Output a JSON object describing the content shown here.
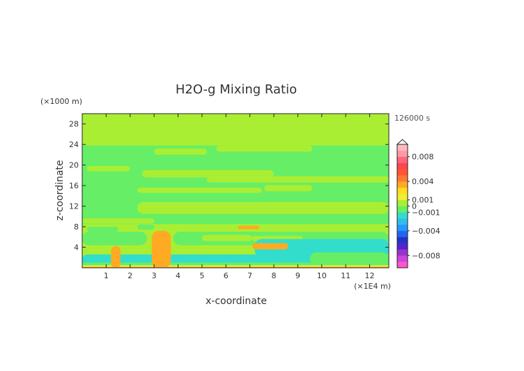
{
  "chart_data": {
    "type": "heatmap",
    "title": "H2O-g Mixing Ratio",
    "xlabel": "x-coordinate",
    "ylabel": "z-coordinate",
    "x_unit": "(×1E4 m)",
    "y_unit": "(×1000 m)",
    "time_label": "126000 s",
    "xlim": [
      0,
      12.8
    ],
    "ylim": [
      0,
      30
    ],
    "x_ticks": [
      1,
      2,
      3,
      4,
      5,
      6,
      7,
      8,
      9,
      10,
      11,
      12
    ],
    "y_ticks": [
      4,
      8,
      12,
      16,
      20,
      24,
      28
    ],
    "colorbar": {
      "range": [
        -0.01,
        0.01
      ],
      "tick_values": [
        0.008,
        0.004,
        0.001,
        0,
        -0.001,
        -0.004,
        -0.008
      ],
      "tick_labels": [
        "0.008",
        "0.004",
        "0.001",
        "0",
        "−0.001",
        "−0.004",
        "−0.008"
      ],
      "colors": [
        "#ff55cc",
        "#cc44dd",
        "#9933cc",
        "#5522cc",
        "#2233cc",
        "#2266ee",
        "#2299ff",
        "#33bbee",
        "#33ddcc",
        "#66ee66",
        "#aaee33",
        "#eeee33",
        "#ffdd22",
        "#ffaa22",
        "#ff7733",
        "#ff5533",
        "#ff4455",
        "#ff6677",
        "#ff99aa",
        "#ffbbbb"
      ]
    },
    "regions": [
      {
        "value": 0.0004,
        "band": [
          0,
          30
        ],
        "note": "background"
      },
      {
        "value": -0.0004,
        "band": [
          8.5,
          23.8
        ],
        "note": "mid-level layer"
      },
      {
        "value": 0.0004,
        "band": [
          22,
          23.2
        ],
        "x": [
          3,
          5.2
        ]
      },
      {
        "value": 0.0004,
        "band": [
          22.6,
          23.8
        ],
        "x": [
          5.6,
          9.6
        ]
      },
      {
        "value": 0.0004,
        "band": [
          18.8,
          19.8
        ],
        "x": [
          0.2,
          2
        ]
      },
      {
        "value": 0.0004,
        "band": [
          17.6,
          19
        ],
        "x": [
          2.5,
          8
        ]
      },
      {
        "value": 0.0004,
        "band": [
          16.6,
          17.8
        ],
        "x": [
          5.2,
          12.8
        ]
      },
      {
        "value": 0.0004,
        "band": [
          14.6,
          15.6
        ],
        "x": [
          2.3,
          7.5
        ]
      },
      {
        "value": 0.0004,
        "band": [
          14.9,
          16.1
        ],
        "x": [
          7.6,
          9.6
        ]
      },
      {
        "value": 0.0004,
        "band": [
          10.5,
          12.8
        ],
        "x": [
          2.3,
          12.8
        ]
      },
      {
        "value": 0.0004,
        "band": [
          8.6,
          9.6
        ],
        "x": [
          0,
          3
        ]
      },
      {
        "value": -0.0004,
        "band": [
          10.9,
          11.8
        ],
        "x": [
          0.2,
          1.8
        ]
      },
      {
        "value": -0.0004,
        "band": [
          7,
          8
        ],
        "x": [
          0.2,
          1.5
        ]
      },
      {
        "value": -0.0004,
        "band": [
          7.4,
          8.4
        ],
        "x": [
          2.3,
          3
        ]
      },
      {
        "value": -0.0004,
        "band": [
          4.4,
          7
        ],
        "x": [
          0,
          2.7
        ]
      },
      {
        "value": -0.0004,
        "band": [
          4.4,
          7
        ],
        "x": [
          3.8,
          12.8
        ]
      },
      {
        "value": 0.0004,
        "band": [
          5.2,
          6.4
        ],
        "x": [
          5,
          7.1
        ]
      },
      {
        "value": 0.0004,
        "band": [
          5.2,
          6.2
        ],
        "x": [
          7.1,
          9.2
        ]
      },
      {
        "value": -0.002,
        "band": [
          2,
          5.6
        ],
        "x": [
          7.2,
          12.8
        ]
      },
      {
        "value": -0.002,
        "band": [
          0.5,
          2.6
        ],
        "x": [
          0,
          12.8
        ]
      },
      {
        "value": -0.0008,
        "band": [
          0.5,
          3
        ],
        "x": [
          9.5,
          12.8
        ]
      },
      {
        "value": -0.0004,
        "band": [
          0.5,
          1
        ],
        "x": [
          0,
          12.8
        ]
      },
      {
        "value": 0.0015,
        "band": [
          0.2,
          0.5
        ],
        "x": [
          0,
          12.8
        ]
      },
      {
        "value": 0.003,
        "band": [
          0,
          0.2
        ],
        "x": [
          0,
          12.8
        ]
      },
      {
        "value": 0.003,
        "band": [
          7.5,
          8.2
        ],
        "x": [
          6.5,
          7.4
        ]
      },
      {
        "value": 0.003,
        "band": [
          3.6,
          4.8
        ],
        "x": [
          7.1,
          8.6
        ]
      },
      {
        "value": 0.003,
        "band": [
          0,
          4.2
        ],
        "x": [
          1.2,
          1.6
        ],
        "note": "plume"
      },
      {
        "value": 0.003,
        "band": [
          0,
          7.2
        ],
        "x": [
          2.9,
          3.7
        ],
        "note": "plume"
      }
    ]
  }
}
